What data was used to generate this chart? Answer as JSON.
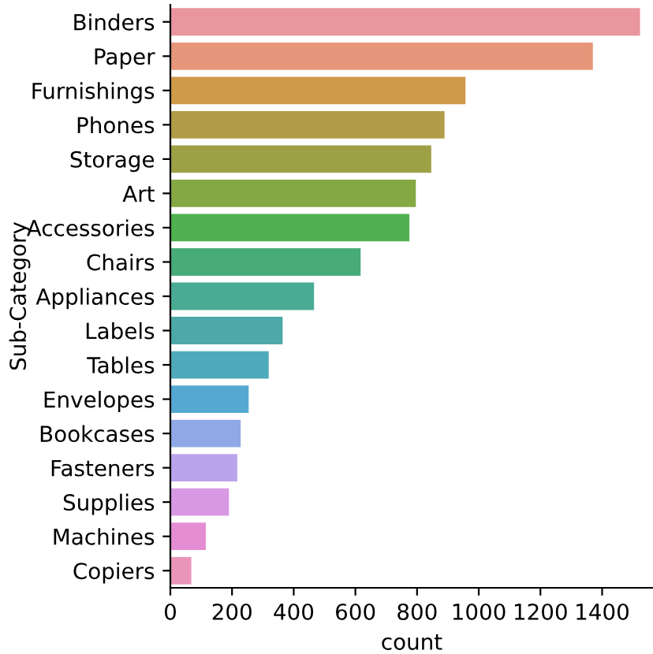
{
  "chart_data": {
    "type": "bar",
    "orientation": "horizontal",
    "xlabel": "count",
    "ylabel": "Sub-Category",
    "categories": [
      "Binders",
      "Paper",
      "Furnishings",
      "Phones",
      "Storage",
      "Art",
      "Accessories",
      "Chairs",
      "Appliances",
      "Labels",
      "Tables",
      "Envelopes",
      "Bookcases",
      "Fasteners",
      "Supplies",
      "Machines",
      "Copiers"
    ],
    "values": [
      1523,
      1370,
      957,
      889,
      846,
      796,
      775,
      617,
      466,
      364,
      319,
      254,
      228,
      217,
      190,
      115,
      68
    ],
    "colors": [
      "#e9969f",
      "#e6967a",
      "#d09a4b",
      "#b19d48",
      "#9ea045",
      "#84a843",
      "#4fb04f",
      "#48ab7a",
      "#4aab95",
      "#4ca9a8",
      "#4eaaba",
      "#55a8d2",
      "#8ea9e6",
      "#bba4ea",
      "#d898e4",
      "#e48dd2",
      "#e995b9"
    ],
    "xlim": [
      0,
      1565
    ],
    "xticks": [
      0,
      200,
      400,
      600,
      800,
      1000,
      1200,
      1400
    ],
    "grid": false
  }
}
